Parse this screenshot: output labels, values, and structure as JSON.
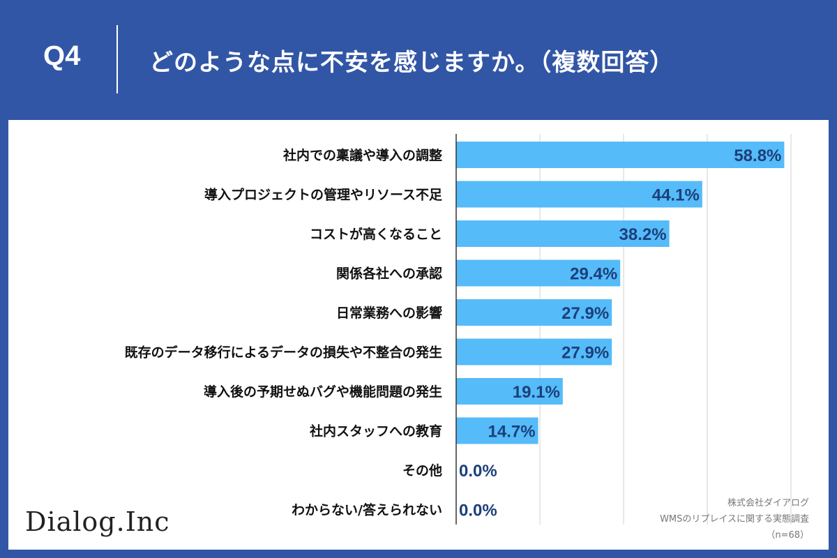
{
  "header": {
    "question_label": "Q4",
    "title": "どのような点に不安を感じますか。（複数回答）"
  },
  "chart_data": {
    "type": "bar",
    "orientation": "horizontal",
    "title": "どのような点に不安を感じますか。（複数回答）",
    "categories": [
      "社内での稟議や導入の調整",
      "導入プロジェクトの管理やリソース不足",
      "コストが高くなること",
      "関係各社への承認",
      "日常業務への影響",
      "既存のデータ移行によるデータの損失や不整合の発生",
      "導入後の予期せぬバグや機能問題の発生",
      "社内スタッフへの教育",
      "その他",
      "わからない/答えられない"
    ],
    "values": [
      58.8,
      44.1,
      38.2,
      29.4,
      27.9,
      27.9,
      19.1,
      14.7,
      0.0,
      0.0
    ],
    "value_labels": [
      "58.8%",
      "44.1%",
      "38.2%",
      "29.4%",
      "27.9%",
      "27.9%",
      "19.1%",
      "14.7%",
      "0.0%",
      "0.0%"
    ],
    "xlim": [
      0,
      60
    ],
    "grid": true,
    "bar_color": "#55bbf9"
  },
  "footer": {
    "logo_text": "Dialog.Inc",
    "source_company": "株式会社ダイアログ",
    "source_survey": "WMSのリプレイスに関する実態調査",
    "sample_size": "（n=68）"
  }
}
